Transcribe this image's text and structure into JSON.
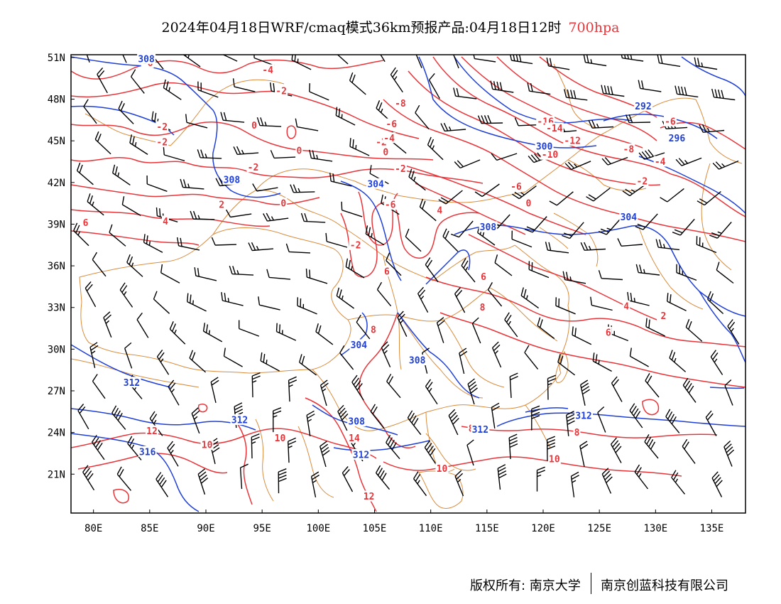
{
  "title": {
    "main": "2024年04月18日WRF/cmaq模式36km预报产品:04月18日12时",
    "level": "700hpa"
  },
  "map": {
    "lon_range": [
      78,
      138
    ],
    "lat_range": [
      18.2,
      51.2
    ],
    "lon_ticks": [
      80,
      85,
      90,
      95,
      100,
      105,
      110,
      115,
      120,
      125,
      130,
      135
    ],
    "lon_labels": [
      "80E",
      "85E",
      "90E",
      "95E",
      "100E",
      "105E",
      "110E",
      "115E",
      "120E",
      "125E",
      "130E",
      "135E"
    ],
    "lat_ticks": [
      21,
      24,
      27,
      30,
      33,
      36,
      39,
      42,
      45,
      48,
      51
    ],
    "lat_labels": [
      "21N",
      "24N",
      "27N",
      "30N",
      "33N",
      "36N",
      "39N",
      "42N",
      "45N",
      "48N",
      "51N"
    ],
    "colors": {
      "temperature": "#e8353a",
      "geopotential": "#1f3fd6",
      "boundary": "#d98c3c",
      "wind": "#000000"
    }
  },
  "temperature_labels": [
    {
      "text": "-6",
      "lon": 84.8,
      "lat": 50.6
    },
    {
      "text": "-4",
      "lon": 95.5,
      "lat": 50.1
    },
    {
      "text": "-2",
      "lon": 96.7,
      "lat": 48.6
    },
    {
      "text": "-2",
      "lon": 86.1,
      "lat": 46.0
    },
    {
      "text": "-2",
      "lon": 86.1,
      "lat": 44.9
    },
    {
      "text": "0",
      "lon": 94.3,
      "lat": 46.1
    },
    {
      "text": "0",
      "lon": 98.3,
      "lat": 44.3
    },
    {
      "text": "-2",
      "lon": 94.2,
      "lat": 43.1
    },
    {
      "text": "0",
      "lon": 96.9,
      "lat": 40.5
    },
    {
      "text": "2",
      "lon": 91.4,
      "lat": 40.4
    },
    {
      "text": "4",
      "lon": 86.4,
      "lat": 39.2
    },
    {
      "text": "6",
      "lon": 79.3,
      "lat": 39.1
    },
    {
      "text": "-8",
      "lon": 107.3,
      "lat": 47.7
    },
    {
      "text": "-6",
      "lon": 106.5,
      "lat": 46.2
    },
    {
      "text": "-2",
      "lon": 105.6,
      "lat": 44.9
    },
    {
      "text": "-4",
      "lon": 106.3,
      "lat": 45.2
    },
    {
      "text": "0",
      "lon": 106.0,
      "lat": 44.2
    },
    {
      "text": "-2",
      "lon": 107.3,
      "lat": 43.0
    },
    {
      "text": "-6",
      "lon": 106.4,
      "lat": 40.4
    },
    {
      "text": "4",
      "lon": 110.8,
      "lat": 40.0
    },
    {
      "text": "-2",
      "lon": 103.3,
      "lat": 37.5
    },
    {
      "text": "6",
      "lon": 106.1,
      "lat": 35.6
    },
    {
      "text": "-16",
      "lon": 120.2,
      "lat": 46.4
    },
    {
      "text": "-14",
      "lon": 121.0,
      "lat": 45.9
    },
    {
      "text": "-12",
      "lon": 122.6,
      "lat": 45.0
    },
    {
      "text": "-10",
      "lon": 120.6,
      "lat": 44.0
    },
    {
      "text": "-8",
      "lon": 127.6,
      "lat": 44.4
    },
    {
      "text": "-6",
      "lon": 117.6,
      "lat": 41.7
    },
    {
      "text": "0",
      "lon": 118.7,
      "lat": 40.5
    },
    {
      "text": "-6",
      "lon": 131.3,
      "lat": 46.4
    },
    {
      "text": "-4",
      "lon": 130.4,
      "lat": 43.5
    },
    {
      "text": "-2",
      "lon": 128.8,
      "lat": 42.1
    },
    {
      "text": "6",
      "lon": 114.7,
      "lat": 35.2
    },
    {
      "text": "8",
      "lon": 114.6,
      "lat": 33.0
    },
    {
      "text": "4",
      "lon": 127.4,
      "lat": 33.1
    },
    {
      "text": "2",
      "lon": 130.7,
      "lat": 32.4
    },
    {
      "text": "6",
      "lon": 125.8,
      "lat": 31.2
    },
    {
      "text": "8",
      "lon": 104.9,
      "lat": 31.4
    },
    {
      "text": "12",
      "lon": 85.2,
      "lat": 24.1
    },
    {
      "text": "10",
      "lon": 90.1,
      "lat": 23.1
    },
    {
      "text": "10",
      "lon": 96.6,
      "lat": 23.6
    },
    {
      "text": "14",
      "lon": 103.2,
      "lat": 23.6
    },
    {
      "text": "12",
      "lon": 104.5,
      "lat": 19.4
    },
    {
      "text": "8",
      "lon": 113.6,
      "lat": 24.3
    },
    {
      "text": "10",
      "lon": 111.0,
      "lat": 21.4
    },
    {
      "text": "8",
      "lon": 123.0,
      "lat": 24.0
    },
    {
      "text": "10",
      "lon": 121.0,
      "lat": 22.1
    }
  ],
  "height_labels": [
    {
      "text": "308",
      "lon": 84.7,
      "lat": 50.9
    },
    {
      "text": "308",
      "lon": 92.3,
      "lat": 42.2
    },
    {
      "text": "304",
      "lon": 105.1,
      "lat": 41.9
    },
    {
      "text": "308",
      "lon": 115.1,
      "lat": 38.8
    },
    {
      "text": "300",
      "lon": 120.1,
      "lat": 44.6
    },
    {
      "text": "292",
      "lon": 128.9,
      "lat": 47.5
    },
    {
      "text": "296",
      "lon": 131.9,
      "lat": 45.2
    },
    {
      "text": "304",
      "lon": 127.6,
      "lat": 39.5
    },
    {
      "text": "304",
      "lon": 103.6,
      "lat": 30.3
    },
    {
      "text": "308",
      "lon": 108.8,
      "lat": 29.2
    },
    {
      "text": "312",
      "lon": 83.4,
      "lat": 27.6
    },
    {
      "text": "312",
      "lon": 93.0,
      "lat": 24.9
    },
    {
      "text": "316",
      "lon": 84.8,
      "lat": 22.6
    },
    {
      "text": "308",
      "lon": 103.4,
      "lat": 24.8
    },
    {
      "text": "312",
      "lon": 103.8,
      "lat": 22.4
    },
    {
      "text": "312",
      "lon": 114.4,
      "lat": 24.2
    },
    {
      "text": "312",
      "lon": 123.6,
      "lat": 25.2
    }
  ],
  "footer": {
    "copyright": "版权所有: 南京大学",
    "company": "南京创蓝科技有限公司"
  }
}
